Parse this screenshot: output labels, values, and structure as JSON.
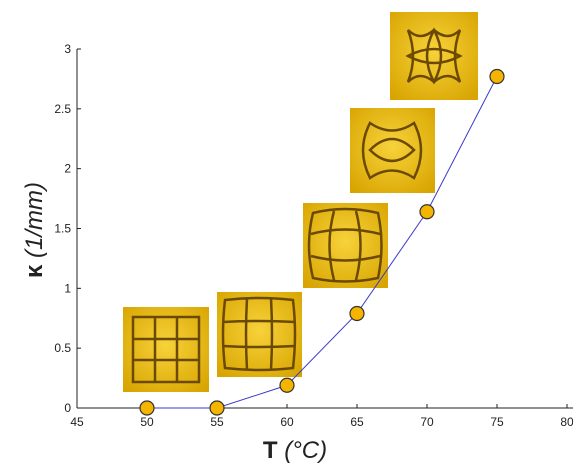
{
  "chart_data": {
    "type": "line",
    "xlabel": [
      "T",
      "(°C)"
    ],
    "ylabel": [
      "κ",
      "(1/mm)"
    ],
    "x": [
      50,
      55,
      60,
      65,
      70,
      75
    ],
    "series": [
      {
        "color": "#3a3ac8",
        "marker_color": "#f5b400",
        "values": [
          0,
          0,
          0.19,
          0.79,
          1.64,
          2.77
        ]
      }
    ],
    "xlim": [
      45,
      80
    ],
    "xticks": [
      45,
      50,
      55,
      60,
      65,
      70,
      75,
      80
    ],
    "ylim": [
      0,
      3
    ],
    "yticks": [
      0,
      0.5,
      1,
      1.5,
      2,
      2.5,
      3
    ]
  }
}
